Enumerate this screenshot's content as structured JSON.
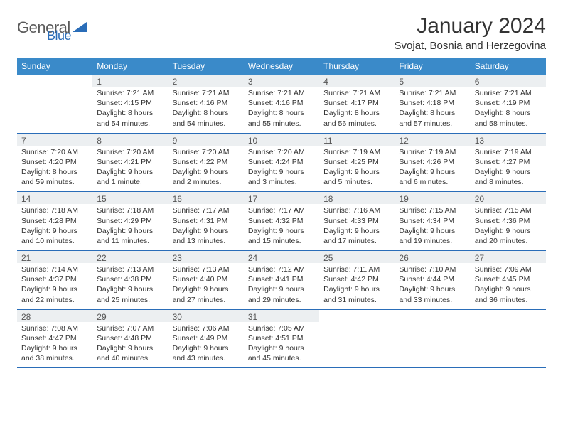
{
  "brand": {
    "name_a": "General",
    "name_b": "Blue"
  },
  "title": "January 2024",
  "location": "Svojat, Bosnia and Herzegovina",
  "colors": {
    "header_bg": "#3a8ac9",
    "header_fg": "#ffffff",
    "daynum_bg": "#eceff1",
    "border": "#2a6db8",
    "text": "#333333",
    "logo_gray": "#5a5a5a",
    "logo_blue": "#2a6db8"
  },
  "weekdays": [
    "Sunday",
    "Monday",
    "Tuesday",
    "Wednesday",
    "Thursday",
    "Friday",
    "Saturday"
  ],
  "weeks": [
    [
      null,
      {
        "n": "1",
        "sunrise": "7:21 AM",
        "sunset": "4:15 PM",
        "daylight": "8 hours and 54 minutes."
      },
      {
        "n": "2",
        "sunrise": "7:21 AM",
        "sunset": "4:16 PM",
        "daylight": "8 hours and 54 minutes."
      },
      {
        "n": "3",
        "sunrise": "7:21 AM",
        "sunset": "4:16 PM",
        "daylight": "8 hours and 55 minutes."
      },
      {
        "n": "4",
        "sunrise": "7:21 AM",
        "sunset": "4:17 PM",
        "daylight": "8 hours and 56 minutes."
      },
      {
        "n": "5",
        "sunrise": "7:21 AM",
        "sunset": "4:18 PM",
        "daylight": "8 hours and 57 minutes."
      },
      {
        "n": "6",
        "sunrise": "7:21 AM",
        "sunset": "4:19 PM",
        "daylight": "8 hours and 58 minutes."
      }
    ],
    [
      {
        "n": "7",
        "sunrise": "7:20 AM",
        "sunset": "4:20 PM",
        "daylight": "8 hours and 59 minutes."
      },
      {
        "n": "8",
        "sunrise": "7:20 AM",
        "sunset": "4:21 PM",
        "daylight": "9 hours and 1 minute."
      },
      {
        "n": "9",
        "sunrise": "7:20 AM",
        "sunset": "4:22 PM",
        "daylight": "9 hours and 2 minutes."
      },
      {
        "n": "10",
        "sunrise": "7:20 AM",
        "sunset": "4:24 PM",
        "daylight": "9 hours and 3 minutes."
      },
      {
        "n": "11",
        "sunrise": "7:19 AM",
        "sunset": "4:25 PM",
        "daylight": "9 hours and 5 minutes."
      },
      {
        "n": "12",
        "sunrise": "7:19 AM",
        "sunset": "4:26 PM",
        "daylight": "9 hours and 6 minutes."
      },
      {
        "n": "13",
        "sunrise": "7:19 AM",
        "sunset": "4:27 PM",
        "daylight": "9 hours and 8 minutes."
      }
    ],
    [
      {
        "n": "14",
        "sunrise": "7:18 AM",
        "sunset": "4:28 PM",
        "daylight": "9 hours and 10 minutes."
      },
      {
        "n": "15",
        "sunrise": "7:18 AM",
        "sunset": "4:29 PM",
        "daylight": "9 hours and 11 minutes."
      },
      {
        "n": "16",
        "sunrise": "7:17 AM",
        "sunset": "4:31 PM",
        "daylight": "9 hours and 13 minutes."
      },
      {
        "n": "17",
        "sunrise": "7:17 AM",
        "sunset": "4:32 PM",
        "daylight": "9 hours and 15 minutes."
      },
      {
        "n": "18",
        "sunrise": "7:16 AM",
        "sunset": "4:33 PM",
        "daylight": "9 hours and 17 minutes."
      },
      {
        "n": "19",
        "sunrise": "7:15 AM",
        "sunset": "4:34 PM",
        "daylight": "9 hours and 19 minutes."
      },
      {
        "n": "20",
        "sunrise": "7:15 AM",
        "sunset": "4:36 PM",
        "daylight": "9 hours and 20 minutes."
      }
    ],
    [
      {
        "n": "21",
        "sunrise": "7:14 AM",
        "sunset": "4:37 PM",
        "daylight": "9 hours and 22 minutes."
      },
      {
        "n": "22",
        "sunrise": "7:13 AM",
        "sunset": "4:38 PM",
        "daylight": "9 hours and 25 minutes."
      },
      {
        "n": "23",
        "sunrise": "7:13 AM",
        "sunset": "4:40 PM",
        "daylight": "9 hours and 27 minutes."
      },
      {
        "n": "24",
        "sunrise": "7:12 AM",
        "sunset": "4:41 PM",
        "daylight": "9 hours and 29 minutes."
      },
      {
        "n": "25",
        "sunrise": "7:11 AM",
        "sunset": "4:42 PM",
        "daylight": "9 hours and 31 minutes."
      },
      {
        "n": "26",
        "sunrise": "7:10 AM",
        "sunset": "4:44 PM",
        "daylight": "9 hours and 33 minutes."
      },
      {
        "n": "27",
        "sunrise": "7:09 AM",
        "sunset": "4:45 PM",
        "daylight": "9 hours and 36 minutes."
      }
    ],
    [
      {
        "n": "28",
        "sunrise": "7:08 AM",
        "sunset": "4:47 PM",
        "daylight": "9 hours and 38 minutes."
      },
      {
        "n": "29",
        "sunrise": "7:07 AM",
        "sunset": "4:48 PM",
        "daylight": "9 hours and 40 minutes."
      },
      {
        "n": "30",
        "sunrise": "7:06 AM",
        "sunset": "4:49 PM",
        "daylight": "9 hours and 43 minutes."
      },
      {
        "n": "31",
        "sunrise": "7:05 AM",
        "sunset": "4:51 PM",
        "daylight": "9 hours and 45 minutes."
      },
      null,
      null,
      null
    ]
  ],
  "labels": {
    "sunrise": "Sunrise:",
    "sunset": "Sunset:",
    "daylight": "Daylight:"
  }
}
